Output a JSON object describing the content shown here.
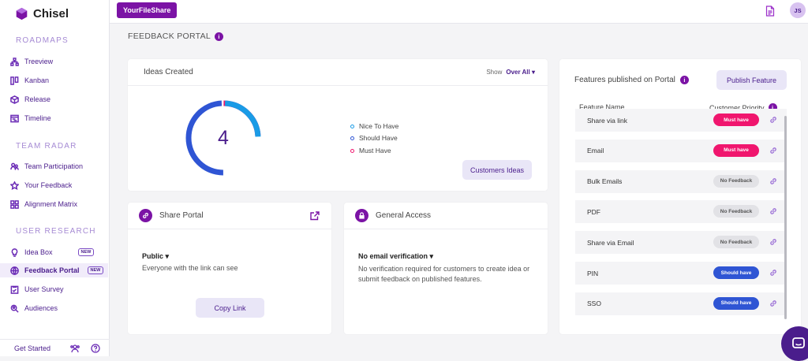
{
  "app": {
    "name": "Chisel"
  },
  "sidebar": {
    "sections": [
      {
        "label": "ROADMAPS",
        "items": [
          {
            "label": "Treeview",
            "icon": "tree-icon"
          },
          {
            "label": "Kanban",
            "icon": "kanban-icon"
          },
          {
            "label": "Release",
            "icon": "box-icon"
          },
          {
            "label": "Timeline",
            "icon": "timeline-icon"
          }
        ]
      },
      {
        "label": "TEAM RADAR",
        "items": [
          {
            "label": "Team Participation",
            "icon": "team-icon"
          },
          {
            "label": "Your Feedback",
            "icon": "star-icon"
          },
          {
            "label": "Alignment Matrix",
            "icon": "grid-icon"
          }
        ]
      },
      {
        "label": "USER RESEARCH",
        "items": [
          {
            "label": "Idea Box",
            "icon": "bulb-icon",
            "badge": "NEW"
          },
          {
            "label": "Feedback Portal",
            "icon": "globe-icon",
            "badge": "NEW",
            "active": true
          },
          {
            "label": "User Survey",
            "icon": "survey-icon"
          },
          {
            "label": "Audiences",
            "icon": "audience-icon"
          }
        ]
      }
    ],
    "footer": {
      "label": "Get Started"
    }
  },
  "topbar": {
    "org_button": "YourFileShare",
    "avatar": "JS"
  },
  "page": {
    "title": "FEEDBACK PORTAL"
  },
  "ideas": {
    "title": "Ideas Created",
    "show_label": "Show",
    "show_value": "Over All",
    "count": "4",
    "legend": [
      {
        "label": "Nice To Have",
        "color": "#1a9be6"
      },
      {
        "label": "Should Have",
        "color": "#2f55d4"
      },
      {
        "label": "Must Have",
        "color": "#f0166e"
      }
    ],
    "button": "Customers Ideas"
  },
  "share": {
    "title": "Share Portal",
    "visibility": "Public",
    "description": "Everyone with the link can see",
    "button": "Copy Link"
  },
  "access": {
    "title": "General Access",
    "mode": "No email verification",
    "description": "No verification required for customers to create idea or submit feedback on published features."
  },
  "features": {
    "title": "Features published on Portal",
    "button": "Publish Feature",
    "col_name": "Feature Name",
    "col_priority": "Customer Priority",
    "rows": [
      {
        "name": "Share via link",
        "priority": "Must have",
        "kind": "must"
      },
      {
        "name": "Email",
        "priority": "Must have",
        "kind": "must"
      },
      {
        "name": "Bulk Emails",
        "priority": "No Feedback",
        "kind": "none"
      },
      {
        "name": "PDF",
        "priority": "No Feedback",
        "kind": "none"
      },
      {
        "name": "Share via Email",
        "priority": "No Feedback",
        "kind": "none"
      },
      {
        "name": "PIN",
        "priority": "Should have",
        "kind": "should"
      },
      {
        "name": "SSO",
        "priority": "Should have",
        "kind": "should"
      }
    ]
  }
}
